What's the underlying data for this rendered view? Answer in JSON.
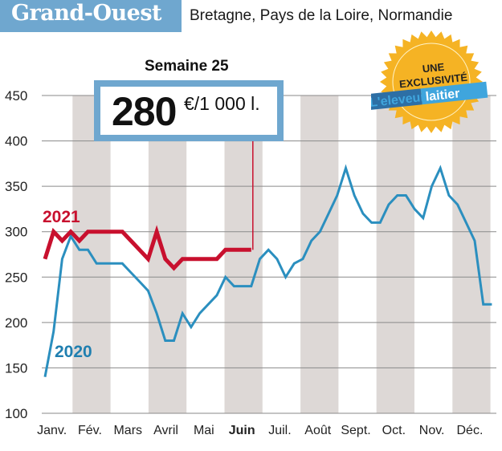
{
  "header": {
    "title": "Grand-Ouest",
    "subtitle": "Bretagne, Pays de la Loire, Normandie"
  },
  "annotation": {
    "week_label": "Semaine 25",
    "value": "280",
    "unit": "€/1 000 l."
  },
  "badge": {
    "line1": "UNE",
    "line2": "EXCLUSIVITÉ",
    "logo_part1": "L'eleveur",
    "logo_part2": "laitier",
    "color": "#f5b324"
  },
  "chart_data": {
    "type": "line",
    "ylim": [
      100,
      450
    ],
    "yticks": [
      100,
      150,
      200,
      250,
      300,
      350,
      400,
      450
    ],
    "grid": true,
    "months": [
      "Janv.",
      "Fév.",
      "Mars",
      "Avril",
      "Mai",
      "Juin",
      "Juil.",
      "Août",
      "Sept.",
      "Oct.",
      "Nov.",
      "Déc."
    ],
    "highlight_month": "Juin",
    "x_unit": "week",
    "series": [
      {
        "name": "2020",
        "color": "#2b8fbf",
        "weeks": [
          1,
          2,
          3,
          4,
          5,
          6,
          7,
          8,
          9,
          10,
          11,
          12,
          13,
          14,
          15,
          16,
          17,
          18,
          19,
          20,
          21,
          22,
          23,
          24,
          25,
          26,
          27,
          28,
          29,
          30,
          31,
          32,
          33,
          34,
          35,
          36,
          37,
          38,
          39,
          40,
          41,
          42,
          43,
          44,
          45,
          46,
          47,
          48,
          49,
          50,
          51,
          52,
          53
        ],
        "values": [
          140,
          190,
          270,
          295,
          280,
          280,
          265,
          265,
          265,
          265,
          255,
          245,
          235,
          210,
          180,
          180,
          210,
          195,
          210,
          220,
          230,
          250,
          240,
          240,
          240,
          270,
          280,
          270,
          250,
          265,
          270,
          290,
          300,
          320,
          340,
          370,
          340,
          320,
          310,
          310,
          330,
          340,
          340,
          325,
          315,
          350,
          370,
          340,
          330,
          310,
          290,
          220,
          220
        ]
      },
      {
        "name": "2021",
        "color": "#c8102e",
        "weeks": [
          1,
          2,
          3,
          4,
          5,
          6,
          7,
          8,
          9,
          10,
          11,
          12,
          13,
          14,
          15,
          16,
          17,
          18,
          19,
          20,
          21,
          22,
          23,
          24,
          25
        ],
        "values": [
          270,
          300,
          290,
          300,
          290,
          300,
          300,
          300,
          300,
          300,
          290,
          280,
          270,
          300,
          270,
          260,
          270,
          270,
          270,
          270,
          270,
          280,
          280,
          280,
          280
        ]
      }
    ],
    "annotated_week": 25
  }
}
